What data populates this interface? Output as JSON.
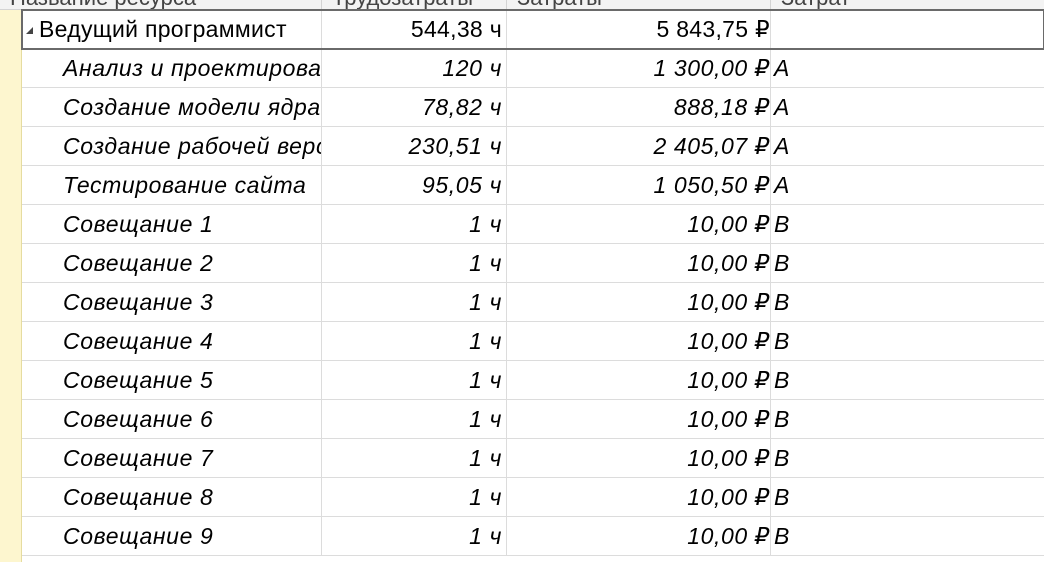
{
  "columns": [
    {
      "label": "Название ресурса"
    },
    {
      "label": "Трудозатраты"
    },
    {
      "label": "Затраты"
    },
    {
      "label": "Затрат"
    }
  ],
  "summary_row": {
    "name": "Ведущий программист",
    "work": "544,38 ч",
    "cost": "5 843,75 ₽",
    "accrual": ""
  },
  "rows": [
    {
      "name": "Анализ и проектирование",
      "work": "120 ч",
      "cost": "1 300,00 ₽",
      "accrual": "A"
    },
    {
      "name": "Создание модели ядра",
      "work": "78,82 ч",
      "cost": "888,18 ₽",
      "accrual": "A"
    },
    {
      "name": "Создание рабочей версии",
      "work": "230,51 ч",
      "cost": "2 405,07 ₽",
      "accrual": "A"
    },
    {
      "name": "Тестирование сайта",
      "work": "95,05 ч",
      "cost": "1 050,50 ₽",
      "accrual": "A"
    },
    {
      "name": "Совещание 1",
      "work": "1 ч",
      "cost": "10,00 ₽",
      "accrual": "B"
    },
    {
      "name": "Совещание 2",
      "work": "1 ч",
      "cost": "10,00 ₽",
      "accrual": "B"
    },
    {
      "name": "Совещание 3",
      "work": "1 ч",
      "cost": "10,00 ₽",
      "accrual": "B"
    },
    {
      "name": "Совещание 4",
      "work": "1 ч",
      "cost": "10,00 ₽",
      "accrual": "B"
    },
    {
      "name": "Совещание 5",
      "work": "1 ч",
      "cost": "10,00 ₽",
      "accrual": "B"
    },
    {
      "name": "Совещание 6",
      "work": "1 ч",
      "cost": "10,00 ₽",
      "accrual": "B"
    },
    {
      "name": "Совещание 7",
      "work": "1 ч",
      "cost": "10,00 ₽",
      "accrual": "B"
    },
    {
      "name": "Совещание 8",
      "work": "1 ч",
      "cost": "10,00 ₽",
      "accrual": "B"
    },
    {
      "name": "Совещание 9",
      "work": "1 ч",
      "cost": "10,00 ₽",
      "accrual": "B"
    }
  ],
  "colors": {
    "indicator": "#fdf6cf",
    "gridline": "#dcdcdc",
    "header_bg": "#f3f3f3"
  },
  "icons": {
    "collapse": "collapse-triangle-icon",
    "dropdown": "dropdown-arrow-icon"
  }
}
